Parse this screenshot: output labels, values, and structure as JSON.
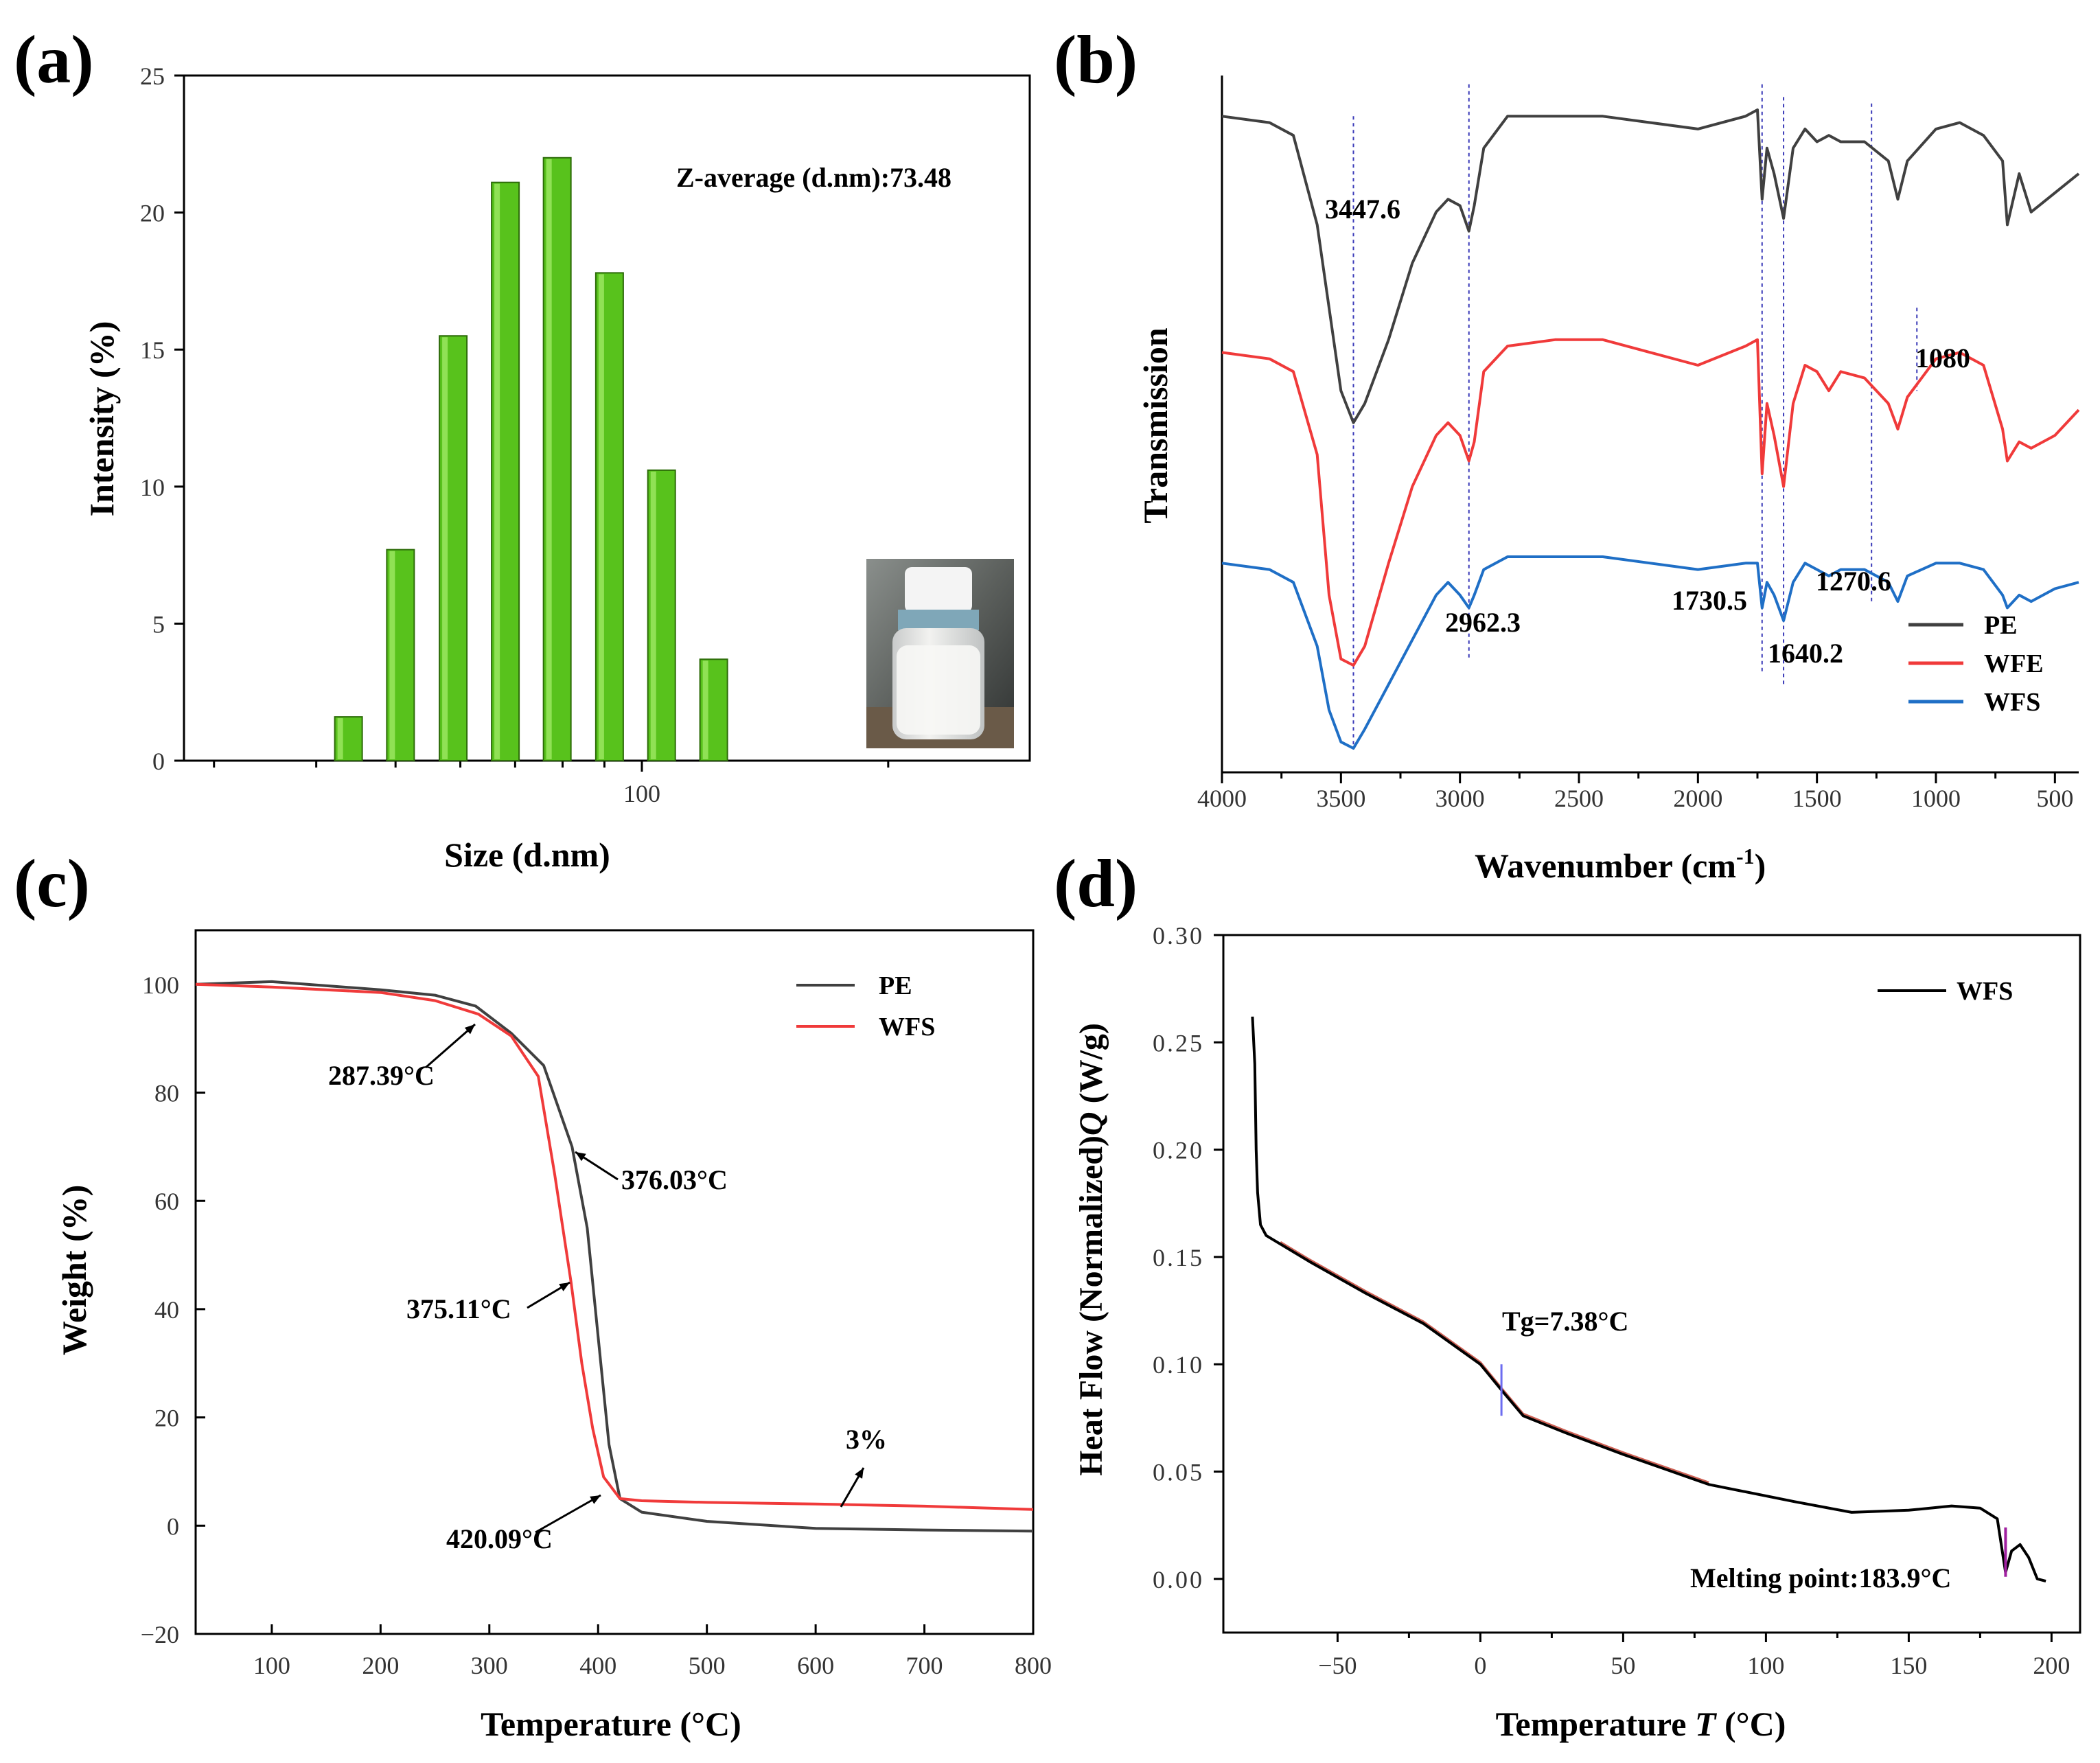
{
  "colors": {
    "pe": "#404040",
    "wfe": "#f03a3a",
    "wfs": "#1f6fc6",
    "bar": "#58c21c",
    "guide": "#3a3ab8",
    "tg": "#6c6cf0",
    "melt": "#a020a0"
  },
  "chart_data": [
    {
      "panel": "(a)",
      "type": "bar",
      "xlabel": "Size (d.nm)",
      "ylabel": "Intensity (%)",
      "xscale": "log",
      "xticks": [
        "100"
      ],
      "ylim": [
        0,
        25
      ],
      "yticks": [
        "0",
        "5",
        "10",
        "15",
        "20",
        "25"
      ],
      "annotation": "Z-average (d.nm):73.48",
      "categories": [
        43.8,
        50.7,
        58.8,
        68.1,
        78.8,
        91.3,
        105.7,
        122.4
      ],
      "values": [
        1.6,
        7.7,
        15.5,
        21.1,
        22.0,
        17.8,
        10.6,
        3.7
      ],
      "inset": "photo of sample vial"
    },
    {
      "panel": "(b)",
      "type": "line",
      "xlabel": "Wavenumber (cm⁻¹)",
      "ylabel": "Transmission",
      "xlim": [
        4000,
        400
      ],
      "xticks": [
        "4000",
        "3500",
        "3000",
        "2500",
        "2000",
        "1500",
        "1000",
        "500"
      ],
      "legend": [
        "PE",
        "WFE",
        "WFS"
      ],
      "peaks": [
        {
          "label": "3447.6",
          "x": 3447.6
        },
        {
          "label": "2962.3",
          "x": 2962.3
        },
        {
          "label": "1730.5",
          "x": 1730.5
        },
        {
          "label": "1640.2",
          "x": 1640.2
        },
        {
          "label": "1270.6",
          "x": 1270.6
        },
        {
          "label": "1080",
          "x": 1080
        }
      ],
      "series": [
        {
          "name": "PE",
          "x": [
            4000,
            3800,
            3700,
            3600,
            3500,
            3447.6,
            3400,
            3300,
            3200,
            3100,
            3050,
            3000,
            2962.3,
            2940,
            2900,
            2800,
            2600,
            2400,
            2200,
            2000,
            1800,
            1750,
            1730.5,
            1710,
            1680,
            1640.2,
            1600,
            1550,
            1500,
            1450,
            1400,
            1300,
            1200,
            1160,
            1120,
            1000,
            900,
            800,
            720,
            700,
            650,
            600,
            500,
            400
          ],
          "y": [
            0.95,
            0.94,
            0.92,
            0.78,
            0.52,
            0.47,
            0.5,
            0.6,
            0.72,
            0.8,
            0.82,
            0.81,
            0.77,
            0.81,
            0.9,
            0.95,
            0.95,
            0.95,
            0.94,
            0.93,
            0.95,
            0.96,
            0.82,
            0.9,
            0.86,
            0.79,
            0.9,
            0.93,
            0.91,
            0.92,
            0.91,
            0.91,
            0.88,
            0.82,
            0.88,
            0.93,
            0.94,
            0.92,
            0.88,
            0.78,
            0.86,
            0.8,
            0.83,
            0.86
          ]
        },
        {
          "name": "WFE",
          "x": [
            4000,
            3800,
            3700,
            3600,
            3550,
            3500,
            3447.6,
            3400,
            3300,
            3200,
            3100,
            3050,
            3000,
            2962.3,
            2940,
            2900,
            2800,
            2600,
            2400,
            2200,
            2000,
            1800,
            1750,
            1730.5,
            1710,
            1680,
            1640.2,
            1600,
            1550,
            1500,
            1450,
            1400,
            1300,
            1200,
            1160,
            1120,
            1000,
            900,
            800,
            720,
            700,
            650,
            600,
            500,
            400
          ],
          "y": [
            0.58,
            0.57,
            0.55,
            0.42,
            0.2,
            0.1,
            0.09,
            0.12,
            0.25,
            0.37,
            0.45,
            0.47,
            0.45,
            0.41,
            0.44,
            0.55,
            0.59,
            0.6,
            0.6,
            0.58,
            0.56,
            0.59,
            0.6,
            0.39,
            0.5,
            0.45,
            0.37,
            0.5,
            0.56,
            0.55,
            0.52,
            0.55,
            0.54,
            0.5,
            0.46,
            0.51,
            0.57,
            0.58,
            0.56,
            0.46,
            0.41,
            0.44,
            0.43,
            0.45,
            0.49
          ]
        },
        {
          "name": "WFS",
          "x": [
            4000,
            3800,
            3700,
            3600,
            3550,
            3500,
            3447.6,
            3400,
            3300,
            3200,
            3100,
            3050,
            3000,
            2962.3,
            2940,
            2900,
            2800,
            2600,
            2400,
            2200,
            2000,
            1800,
            1750,
            1730.5,
            1710,
            1680,
            1640.2,
            1600,
            1550,
            1500,
            1450,
            1400,
            1300,
            1200,
            1160,
            1120,
            1000,
            900,
            800,
            720,
            700,
            650,
            600,
            500,
            400
          ],
          "y": [
            0.25,
            0.24,
            0.22,
            0.12,
            0.02,
            -0.03,
            -0.04,
            -0.01,
            0.06,
            0.13,
            0.2,
            0.22,
            0.2,
            0.18,
            0.2,
            0.24,
            0.26,
            0.26,
            0.26,
            0.25,
            0.24,
            0.25,
            0.25,
            0.18,
            0.22,
            0.2,
            0.16,
            0.22,
            0.25,
            0.24,
            0.23,
            0.24,
            0.24,
            0.22,
            0.19,
            0.23,
            0.25,
            0.25,
            0.24,
            0.2,
            0.18,
            0.2,
            0.19,
            0.21,
            0.22
          ]
        }
      ]
    },
    {
      "panel": "(c)",
      "type": "line",
      "xlabel": "Temperature (°C)",
      "ylabel": "Weight (%)",
      "xlim": [
        30,
        800
      ],
      "ylim": [
        -20,
        110
      ],
      "xticks": [
        "100",
        "200",
        "300",
        "400",
        "500",
        "600",
        "700",
        "800"
      ],
      "yticks": [
        "-20",
        "0",
        "20",
        "40",
        "60",
        "80",
        "100"
      ],
      "legend": [
        "PE",
        "WFS"
      ],
      "annotations": [
        "287.39°C",
        "376.03°C",
        "375.11°C",
        "420.09°C",
        "3%"
      ],
      "series": [
        {
          "name": "PE",
          "x": [
            30,
            100,
            200,
            250,
            287.39,
            320,
            350,
            376.03,
            390,
            400,
            410,
            420.09,
            440,
            500,
            600,
            700,
            800
          ],
          "y": [
            100,
            100.5,
            99,
            98,
            96,
            91,
            85,
            70,
            55,
            35,
            15,
            5,
            2.5,
            0.8,
            -0.5,
            -0.8,
            -1
          ]
        },
        {
          "name": "WFS",
          "x": [
            30,
            100,
            200,
            250,
            290,
            320,
            345,
            360,
            375.11,
            385,
            395,
            405,
            420.09,
            440,
            500,
            600,
            700,
            800
          ],
          "y": [
            100,
            99.5,
            98.5,
            97,
            94.5,
            90.5,
            83,
            65,
            45,
            30,
            18,
            9,
            5,
            4.6,
            4.3,
            4,
            3.6,
            3
          ]
        }
      ]
    },
    {
      "panel": "(d)",
      "type": "line",
      "xlabel": "Temperature T (°C)",
      "ylabel": "Heat Flow (Normalized)Q (W/g)",
      "xlim": [
        -90,
        210
      ],
      "ylim": [
        -0.025,
        0.3
      ],
      "xticks": [
        "-50",
        "0",
        "50",
        "100",
        "150",
        "200"
      ],
      "yticks": [
        "0.00",
        "0.05",
        "0.10",
        "0.15",
        "0.20",
        "0.25",
        "0.30"
      ],
      "legend": [
        "WFS"
      ],
      "annotations": [
        "Tg=7.38°C",
        "Melting point:183.9°C"
      ],
      "series": [
        {
          "name": "WFS",
          "x": [
            -79.8,
            -79,
            -78.5,
            -78,
            -77,
            -75,
            -70,
            -60,
            -40,
            -20,
            0,
            7.38,
            15,
            30,
            50,
            80,
            110,
            130,
            150,
            165,
            175,
            181,
            183.9,
            186,
            189,
            192,
            195,
            198
          ],
          "y": [
            0.262,
            0.24,
            0.2,
            0.18,
            0.165,
            0.16,
            0.156,
            0.148,
            0.133,
            0.119,
            0.1,
            0.088,
            0.076,
            0.068,
            0.058,
            0.044,
            0.036,
            0.031,
            0.032,
            0.034,
            0.033,
            0.028,
            0.003,
            0.013,
            0.016,
            0.01,
            0.0,
            -0.001
          ]
        }
      ]
    }
  ],
  "panels": {
    "a": {
      "label": "(a)",
      "ylabel": "Intensity (%)",
      "xlabel": "Size (d.nm)",
      "annotation": "Z-average (d.nm):73.48"
    },
    "b": {
      "label": "(b)",
      "ylabel": "Transmission",
      "xlabel_main": "Wavenumber (cm",
      "xlabel_sup": "-1",
      "xlabel_end": ")"
    },
    "c": {
      "label": "(c)",
      "ylabel": "Weight (%)",
      "xlabel": "Temperature (°C)"
    },
    "d": {
      "label": "(d)",
      "ylabel_pre": "Heat Flow (Normalized)",
      "ylabel_q": "Q",
      "ylabel_post": " (W/g)",
      "xlabel_pre": "Temperature ",
      "xlabel_t": "T",
      "xlabel_post": " (°C)"
    }
  }
}
